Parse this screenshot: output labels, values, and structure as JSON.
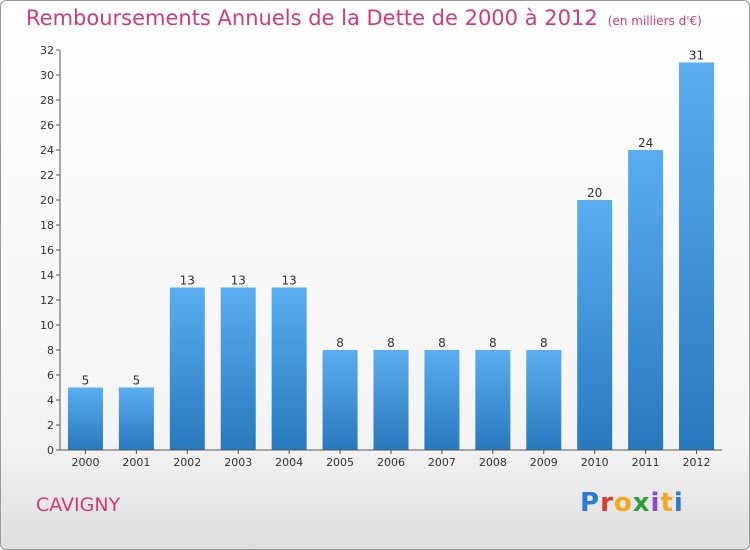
{
  "chart_data": {
    "type": "bar",
    "title": "Remboursements Annuels de la Dette de 2000 à 2012",
    "subtitle": "(en milliers d'€)",
    "categories": [
      "2000",
      "2001",
      "2002",
      "2003",
      "2004",
      "2005",
      "2006",
      "2007",
      "2008",
      "2009",
      "2010",
      "2011",
      "2012"
    ],
    "values": [
      5,
      5,
      13,
      13,
      13,
      8,
      8,
      8,
      8,
      8,
      20,
      24,
      31
    ],
    "ylim": [
      0,
      32
    ],
    "yticks": [
      0,
      2,
      4,
      6,
      8,
      10,
      12,
      14,
      16,
      18,
      20,
      22,
      24,
      26,
      28,
      30,
      32
    ],
    "grid": false,
    "legend": "none",
    "bar_color": "#4a9fe0"
  },
  "footer": {
    "commune": "CAVIGNY",
    "logo_text": "Proxiti",
    "logo_colors": [
      "#2a7bd1",
      "#e03a2e",
      "#f5a623",
      "#2e9e3a",
      "#8a4bd1",
      "#f5a623",
      "#2a7bd1"
    ]
  }
}
